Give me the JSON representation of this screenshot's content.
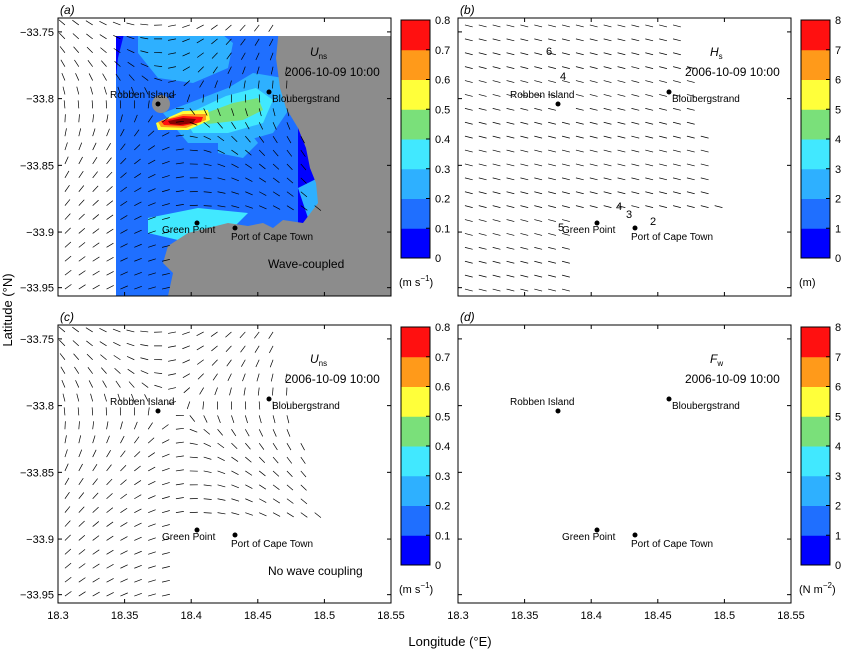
{
  "figure": {
    "xlabel": "Longitude (°E)",
    "ylabel": "Latitude (°N)",
    "x_ticks": [
      "18.3",
      "18.35",
      "18.4",
      "18.45",
      "18.5",
      "18.55"
    ],
    "y_ticks": [
      "−33.75",
      "−33.8",
      "−33.85",
      "−33.9",
      "−33.95"
    ],
    "places": [
      "Robben Island",
      "Bloubergstrand",
      "Green Point",
      "Port of Cape Town"
    ],
    "colors": {
      "land": "#8c8c8c",
      "scale": [
        "#0000ff",
        "#1f6fff",
        "#2eb0ff",
        "#41e8ff",
        "#7ae07a",
        "#ffff3a",
        "#ff9a1a",
        "#ff1010",
        "#8a0000"
      ]
    }
  },
  "panels": [
    {
      "id": "a",
      "label": "(a)",
      "variable": "U",
      "subscript": "ns",
      "timestamp": "2006-10-09 10:00",
      "note": "Wave-coupled",
      "colorbar": {
        "ticks": [
          "0",
          "0.1",
          "0.2",
          "0.3",
          "0.4",
          "0.5",
          "0.6",
          "0.7",
          "0.8"
        ],
        "unit": "(m s",
        "unit_sup": "−1",
        "unit_end": ")"
      }
    },
    {
      "id": "b",
      "label": "(b)",
      "variable": "H",
      "subscript": "s",
      "timestamp": "2006-10-09 10:00",
      "contour_labels": [
        "6",
        "4",
        "5",
        "4",
        "3",
        "2"
      ],
      "colorbar": {
        "ticks": [
          "0",
          "1",
          "2",
          "3",
          "4",
          "5",
          "6",
          "7",
          "8"
        ],
        "unit": "(m)",
        "unit_sup": "",
        "unit_end": ""
      }
    },
    {
      "id": "c",
      "label": "(c)",
      "variable": "U",
      "subscript": "ns",
      "timestamp": "2006-10-09 10:00",
      "note": "No wave coupling",
      "colorbar": {
        "ticks": [
          "0",
          "0.1",
          "0.2",
          "0.3",
          "0.4",
          "0.5",
          "0.6",
          "0.7",
          "0.8"
        ],
        "unit": "(m s",
        "unit_sup": "−1",
        "unit_end": ")"
      }
    },
    {
      "id": "d",
      "label": "(d)",
      "variable": "F",
      "subscript": "w",
      "timestamp": "2006-10-09 10:00",
      "colorbar": {
        "ticks": [
          "0",
          "1",
          "2",
          "3",
          "4",
          "5",
          "6",
          "7",
          "8"
        ],
        "unit": "(N m",
        "unit_sup": "−2",
        "unit_end": ")"
      }
    }
  ]
}
